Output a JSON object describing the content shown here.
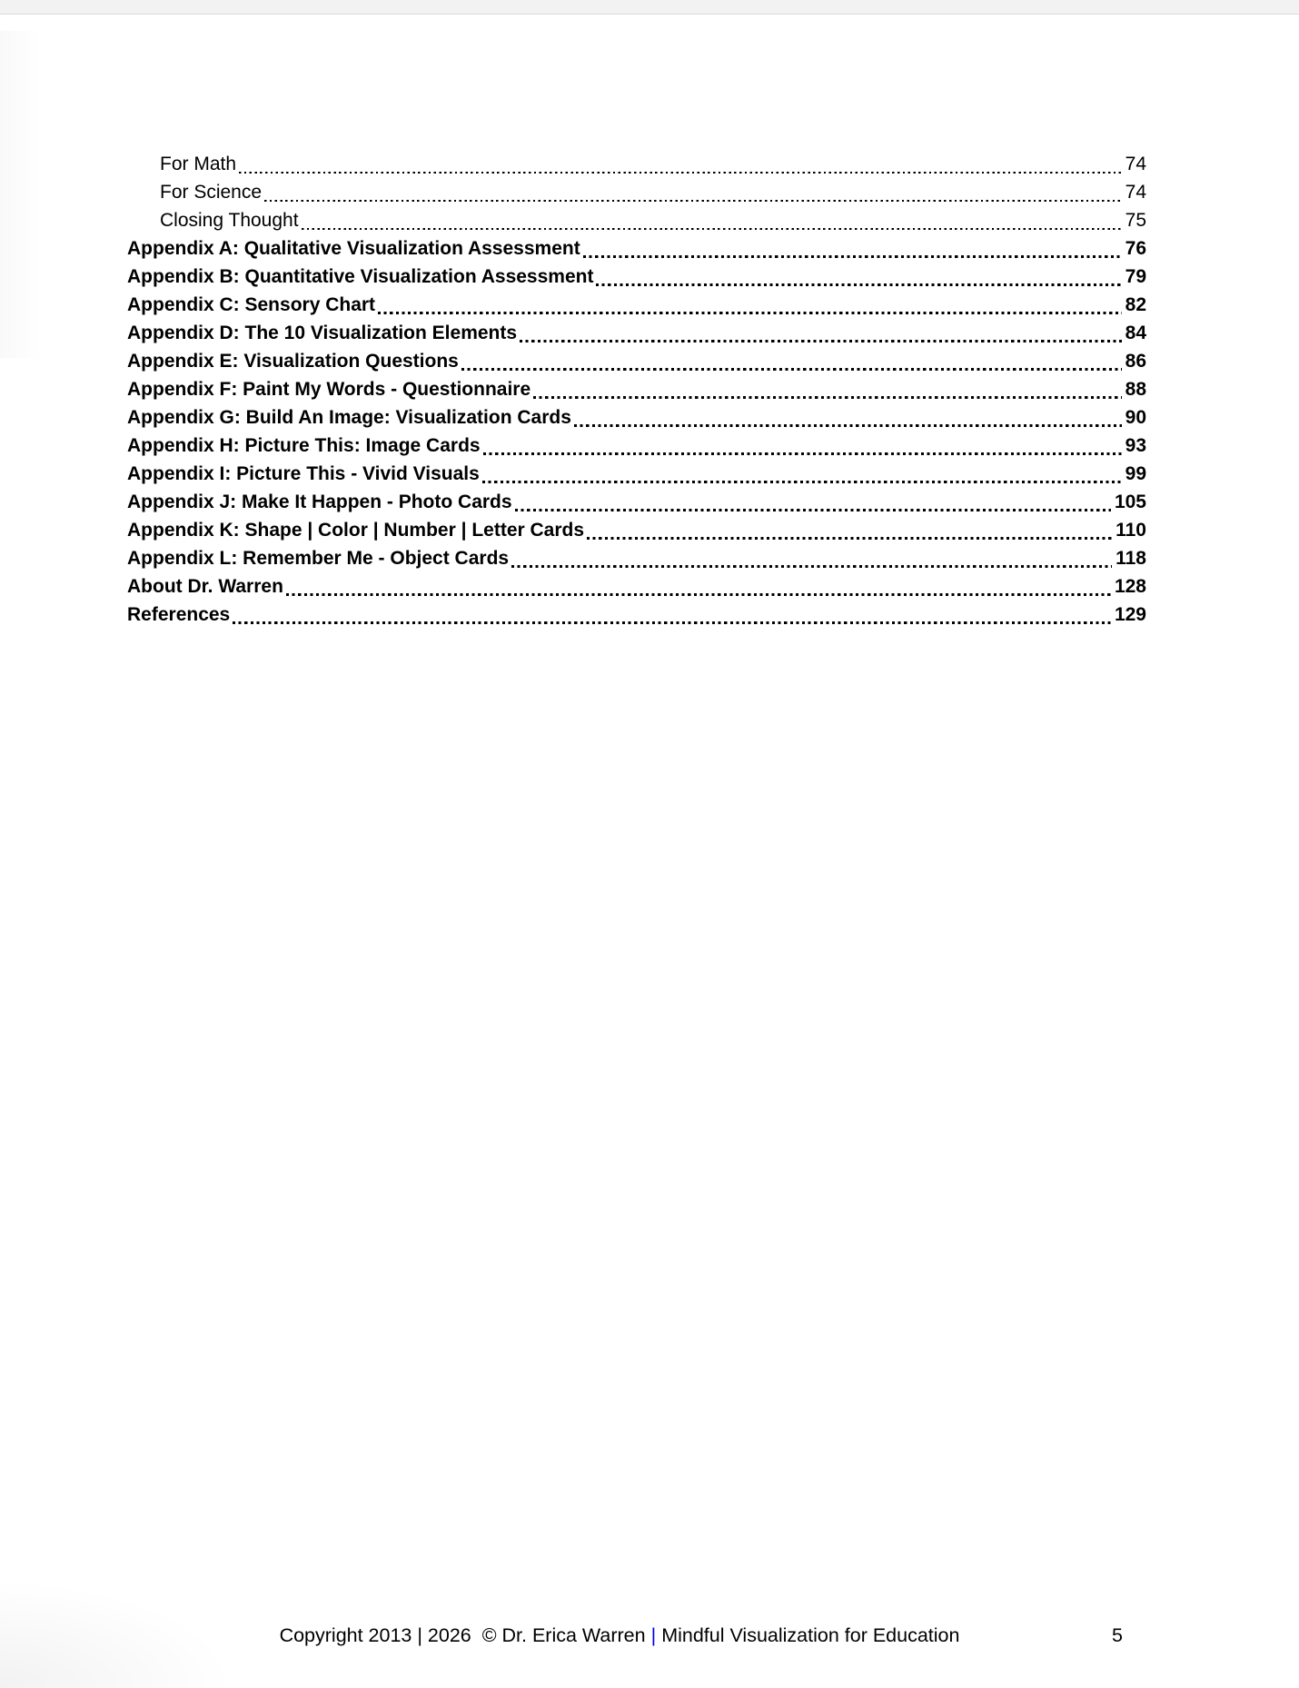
{
  "toc": {
    "entries": [
      {
        "label": "For Math",
        "page": "74",
        "indent": true,
        "bold": false
      },
      {
        "label": "For Science",
        "page": "74",
        "indent": true,
        "bold": false
      },
      {
        "label": "Closing Thought",
        "page": "75",
        "indent": true,
        "bold": false
      },
      {
        "label": "Appendix A: Qualitative Visualization Assessment",
        "page": "76",
        "indent": false,
        "bold": true
      },
      {
        "label": "Appendix B: Quantitative Visualization Assessment",
        "page": "79",
        "indent": false,
        "bold": true
      },
      {
        "label": "Appendix C: Sensory Chart",
        "page": "82",
        "indent": false,
        "bold": true
      },
      {
        "label": "Appendix D: The 10 Visualization Elements",
        "page": "84",
        "indent": false,
        "bold": true
      },
      {
        "label": "Appendix E: Visualization Questions",
        "page": "86",
        "indent": false,
        "bold": true
      },
      {
        "label": "Appendix F: Paint My Words - Questionnaire",
        "page": "88",
        "indent": false,
        "bold": true
      },
      {
        "label": "Appendix G: Build An Image: Visualization Cards",
        "page": "90",
        "indent": false,
        "bold": true
      },
      {
        "label": "Appendix H: Picture This: Image Cards",
        "page": "93",
        "indent": false,
        "bold": true
      },
      {
        "label": "Appendix I: Picture This - Vivid Visuals",
        "page": "99",
        "indent": false,
        "bold": true
      },
      {
        "label": "Appendix J: Make It Happen - Photo Cards",
        "page": "105",
        "indent": false,
        "bold": true
      },
      {
        "label": "Appendix K: Shape | Color | Number | Letter  Cards",
        "page": "110",
        "indent": false,
        "bold": true
      },
      {
        "label": "Appendix L: Remember Me - Object Cards",
        "page": "118",
        "indent": false,
        "bold": true
      },
      {
        "label": "About Dr. Warren",
        "page": "128",
        "indent": false,
        "bold": true
      },
      {
        "label": "References",
        "page": "129",
        "indent": false,
        "bold": true
      }
    ]
  },
  "footer": {
    "copyright": "Copyright 2013 | 2026  © Dr. Erica Warren",
    "separator": "|",
    "doc_title": "Mindful Visualization for Education",
    "page_number": "5",
    "separator_color": "#0000ee"
  }
}
